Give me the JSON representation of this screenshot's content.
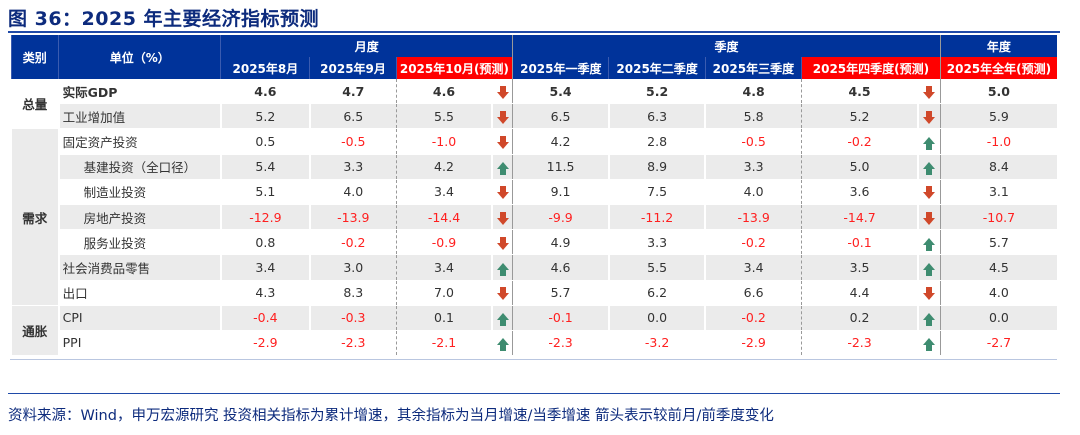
{
  "title": "图 36：2025 年主要经济指标预测",
  "header": {
    "category": "类别",
    "unit": "单位（%）",
    "groups": {
      "monthly": "月度",
      "quarterly": "季度",
      "annual": "年度"
    },
    "columns": [
      "2025年8月",
      "2025年9月",
      "2025年10月(预测)",
      "2025年一季度",
      "2025年二季度",
      "2025年三季度",
      "2025年四季度(预测)",
      "2025年全年(预测)"
    ]
  },
  "categories": {
    "total": "总量",
    "demand": "需求",
    "inflation": "通胀"
  },
  "rows": [
    {
      "label": "实际GDP",
      "values": [
        "4.6",
        "4.7",
        "4.6",
        "5.4",
        "5.2",
        "4.8",
        "4.5",
        "5.0"
      ],
      "arrows": [
        "down",
        "down"
      ]
    },
    {
      "label": "工业增加值",
      "values": [
        "5.2",
        "6.5",
        "5.5",
        "6.5",
        "6.3",
        "5.8",
        "5.2",
        "5.9"
      ],
      "arrows": [
        "down",
        "down"
      ]
    },
    {
      "label": "固定资产投资",
      "values": [
        "0.5",
        "-0.5",
        "-1.0",
        "4.2",
        "2.8",
        "-0.5",
        "-0.2",
        "-1.0"
      ],
      "arrows": [
        "down",
        "up"
      ]
    },
    {
      "label": "基建投资（全口径）",
      "values": [
        "5.4",
        "3.3",
        "4.2",
        "11.5",
        "8.9",
        "3.3",
        "5.0",
        "8.4"
      ],
      "arrows": [
        "up",
        "up"
      ]
    },
    {
      "label": "制造业投资",
      "values": [
        "5.1",
        "4.0",
        "3.4",
        "9.1",
        "7.5",
        "4.0",
        "3.6",
        "3.1"
      ],
      "arrows": [
        "down",
        "down"
      ]
    },
    {
      "label": "房地产投资",
      "values": [
        "-12.9",
        "-13.9",
        "-14.4",
        "-9.9",
        "-11.2",
        "-13.9",
        "-14.7",
        "-10.7"
      ],
      "arrows": [
        "down",
        "down"
      ]
    },
    {
      "label": "服务业投资",
      "values": [
        "0.8",
        "-0.2",
        "-0.9",
        "4.9",
        "3.3",
        "-0.2",
        "-0.1",
        "5.7"
      ],
      "arrows": [
        "down",
        "up"
      ]
    },
    {
      "label": "社会消费品零售",
      "values": [
        "3.4",
        "3.0",
        "3.4",
        "4.6",
        "5.5",
        "3.4",
        "3.5",
        "4.5"
      ],
      "arrows": [
        "up",
        "up"
      ]
    },
    {
      "label": "出口",
      "values": [
        "4.3",
        "8.3",
        "7.0",
        "5.7",
        "6.2",
        "6.6",
        "4.4",
        "4.0"
      ],
      "arrows": [
        "down",
        "down"
      ]
    },
    {
      "label": "CPI",
      "values": [
        "-0.4",
        "-0.3",
        "0.1",
        "-0.1",
        "0.0",
        "-0.2",
        "0.2",
        "0.0"
      ],
      "arrows": [
        "up",
        "up"
      ]
    },
    {
      "label": "PPI",
      "values": [
        "-2.9",
        "-2.3",
        "-2.1",
        "-2.3",
        "-3.2",
        "-2.9",
        "-2.3",
        "-2.7"
      ],
      "arrows": [
        "up",
        "up"
      ]
    }
  ],
  "colors": {
    "header": "#00339a",
    "predicted": "#ff0000",
    "negative": "#ff2020",
    "down_arrow": "#d0482a",
    "up_arrow": "#3e8c70"
  },
  "source": "资料来源：Wind，申万宏源研究  投资相关指标为累计增速，其余指标为当月增速/当季增速   箭头表示较前月/前季度变化"
}
